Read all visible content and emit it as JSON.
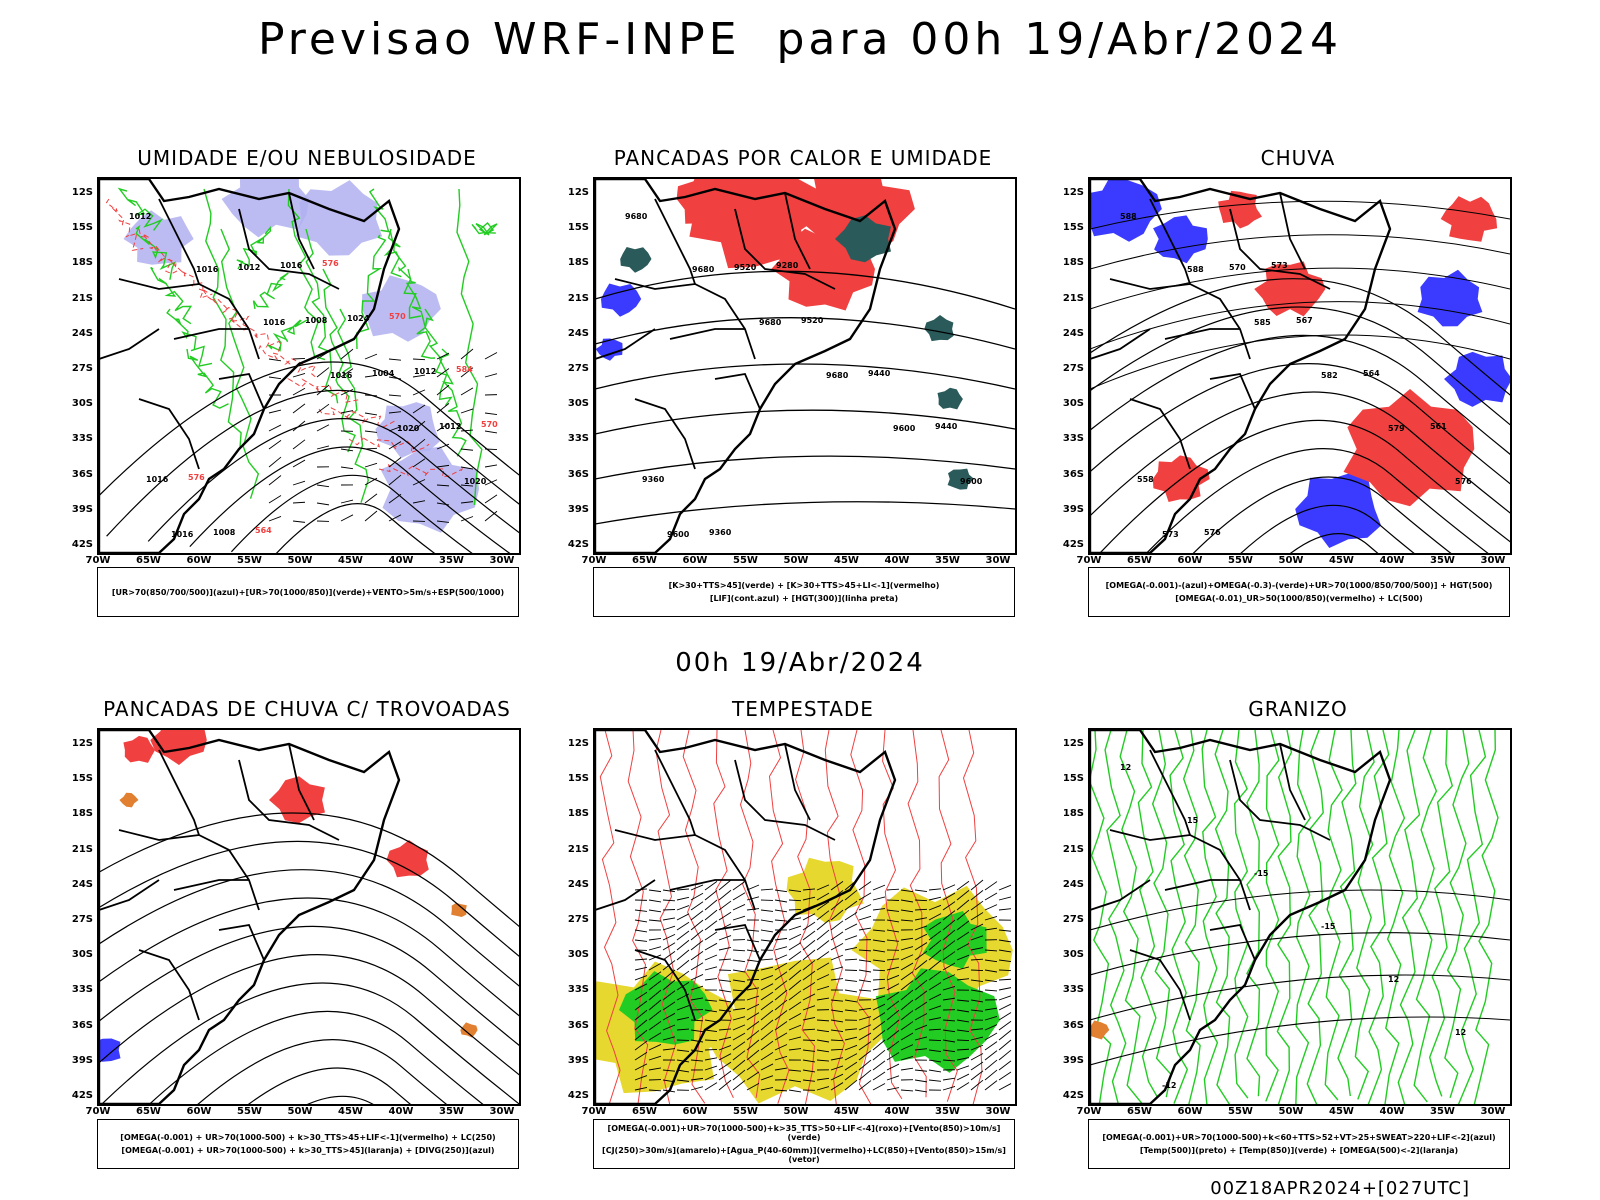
{
  "page": {
    "title": "Previsao WRF-INPE  para 00h 19/Abr/2024",
    "mid_title": "00h 19/Abr/2024",
    "footer": "00Z18APR2024+[027UTC]"
  },
  "axes": {
    "lat_labels": [
      "12S",
      "15S",
      "18S",
      "21S",
      "24S",
      "27S",
      "30S",
      "33S",
      "36S",
      "39S",
      "42S"
    ],
    "lon_labels": [
      "70W",
      "65W",
      "60W",
      "55W",
      "50W",
      "45W",
      "40W",
      "35W",
      "30W"
    ]
  },
  "colors": {
    "blue": "#3b3bff",
    "lavender": "#b0b0f0",
    "green": "#22cc22",
    "red": "#f04040",
    "teal": "#2a5a5a",
    "yellow": "#e6d82e",
    "orange": "#e08030",
    "black": "#000000"
  },
  "panels": [
    {
      "id": "umidade",
      "title": "UMIDADE E/OU NEBULOSIDADE",
      "legend": [
        "[UR>70(850/700/500)](azul)+[UR>70(1000/850)](verde)+VENTO>5m/s+ESP(500/1000)"
      ],
      "contour_labels": [
        "1012",
        "1016",
        "1016",
        "1016",
        "1020",
        "1020",
        "1016",
        "1012",
        "1008",
        "1004",
        "1012",
        "1016",
        "1008",
        "1016",
        "1024",
        "1012",
        "570",
        "576",
        "564",
        "576",
        "570",
        "584"
      ]
    },
    {
      "id": "pancadas-calor",
      "title": "PANCADAS POR CALOR E UMIDADE",
      "legend": [
        "[K>30+TTS>45](verde) + [K>30+TTS>45+LI<-1](vermelho)",
        "[LIF](cont.azul) + [HGT(300)](linha preta)"
      ],
      "contour_labels": [
        "9680",
        "9680",
        "9680",
        "9680",
        "9600",
        "9600",
        "9600",
        "9520",
        "9520",
        "9440",
        "9440",
        "9360",
        "9360",
        "9280"
      ]
    },
    {
      "id": "chuva",
      "title": "CHUVA",
      "legend": [
        "[OMEGA(-0.001)-(azul)+OMEGA(-0.3)-(verde)+UR>70(1000/850/700/500)] + HGT(500)",
        "[OMEGA(-0.01)_UR>50(1000/850)(vermelho) + LC(500)"
      ],
      "contour_labels": [
        "588",
        "588",
        "585",
        "582",
        "579",
        "576",
        "573",
        "570",
        "567",
        "564",
        "561",
        "558",
        "576",
        "573"
      ]
    },
    {
      "id": "pancadas-trovoadas",
      "title": "PANCADAS DE CHUVA C/ TROVOADAS",
      "legend": [
        "[OMEGA(-0.001) + UR>70(1000-500) + k>30_TTS>45+LIF<-1](vermelho) + LC(250)",
        "[OMEGA(-0.001) + UR>70(1000-500) + k>30_TTS>45](laranja) + [DIVG(250)](azul)"
      ],
      "contour_labels": []
    },
    {
      "id": "tempestade",
      "title": "TEMPESTADE",
      "legend": [
        "[OMEGA(-0.001)+UR>70(1000-500)+k>35_TTS>50+LIF<-4](roxo)+[Vento(850)>10m/s](verde)",
        "[CJ(250)>30m/s](amarelo)+[Agua_P(40-60mm)](vermelho)+LC(850)+[Vento(850)>15m/s](vetor)"
      ],
      "contour_labels": []
    },
    {
      "id": "granizo",
      "title": "GRANIZO",
      "legend": [
        "[OMEGA(-0.001)+UR>70(1000-500)+k<60+TTS>52+VT>25+SWEAT>220+LIF<-2](azul)",
        "[Temp(500)](preto) + [Temp(850)](verde) + [OMEGA(500)<-2](laranja)"
      ],
      "contour_labels": [
        "12",
        "15",
        "-15",
        "-15",
        "12",
        "12",
        "-12"
      ]
    }
  ]
}
